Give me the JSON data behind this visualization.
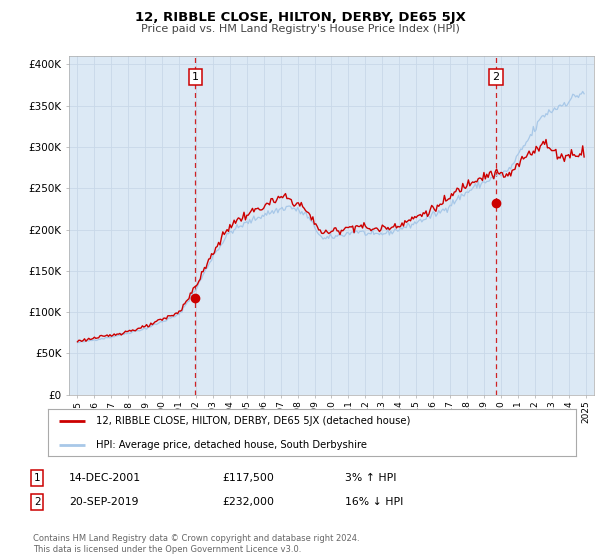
{
  "title": "12, RIBBLE CLOSE, HILTON, DERBY, DE65 5JX",
  "subtitle": "Price paid vs. HM Land Registry's House Price Index (HPI)",
  "background_color": "#ffffff",
  "plot_bg_color": "#dce9f5",
  "grid_color": "#c8d8e8",
  "hpi_color": "#a8c8e8",
  "price_color": "#cc0000",
  "ylim": [
    0,
    410000
  ],
  "yticks": [
    0,
    50000,
    100000,
    150000,
    200000,
    250000,
    300000,
    350000,
    400000
  ],
  "ytick_labels": [
    "£0",
    "£50K",
    "£100K",
    "£150K",
    "£200K",
    "£250K",
    "£300K",
    "£350K",
    "£400K"
  ],
  "xmin": 1994.5,
  "xmax": 2025.5,
  "xticks": [
    1995,
    1996,
    1997,
    1998,
    1999,
    2000,
    2001,
    2002,
    2003,
    2004,
    2005,
    2006,
    2007,
    2008,
    2009,
    2010,
    2011,
    2012,
    2013,
    2014,
    2015,
    2016,
    2017,
    2018,
    2019,
    2020,
    2021,
    2022,
    2023,
    2024,
    2025
  ],
  "sale1_x": 2001.95,
  "sale1_y": 117500,
  "sale1_label": "1",
  "sale1_date": "14-DEC-2001",
  "sale1_price": "£117,500",
  "sale1_hpi": "3% ↑ HPI",
  "sale2_x": 2019.72,
  "sale2_y": 232000,
  "sale2_label": "2",
  "sale2_date": "20-SEP-2019",
  "sale2_price": "£232,000",
  "sale2_hpi": "16% ↓ HPI",
  "legend_label1": "12, RIBBLE CLOSE, HILTON, DERBY, DE65 5JX (detached house)",
  "legend_label2": "HPI: Average price, detached house, South Derbyshire",
  "footer1": "Contains HM Land Registry data © Crown copyright and database right 2024.",
  "footer2": "This data is licensed under the Open Government Licence v3.0."
}
